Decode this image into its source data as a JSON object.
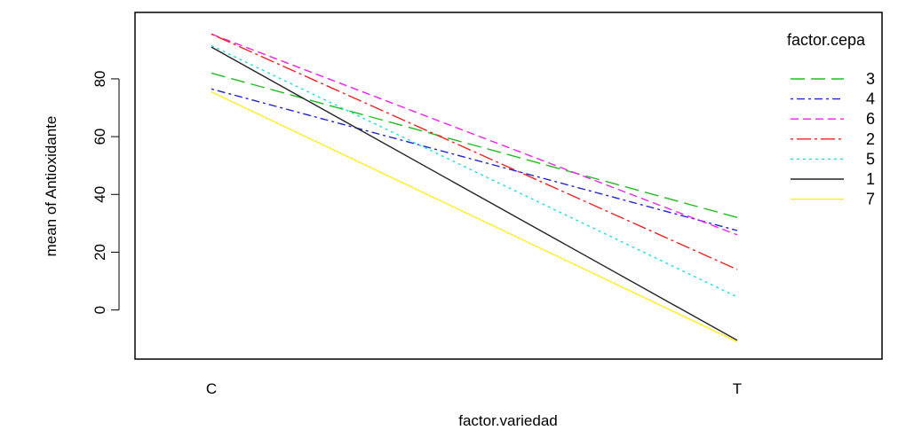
{
  "chart_data": {
    "type": "line",
    "title": "",
    "xlabel": "factor.variedad",
    "ylabel": "mean of  Antioxidante",
    "categories": [
      "C",
      "T"
    ],
    "ylim": [
      -17,
      103
    ],
    "yticks": [
      0,
      20,
      40,
      60,
      80
    ],
    "grid": false,
    "legend": {
      "title": "factor.cepa",
      "position": "right"
    },
    "series": [
      {
        "name": "3",
        "values": [
          82,
          32
        ],
        "color": "#22bb22",
        "dash": "long-dash"
      },
      {
        "name": "4",
        "values": [
          76.5,
          27.5
        ],
        "color": "#2222cc",
        "dash": "dot-dash"
      },
      {
        "name": "6",
        "values": [
          95.5,
          26
        ],
        "color": "#ee22ee",
        "dash": "dash"
      },
      {
        "name": "2",
        "values": [
          95.5,
          14
        ],
        "color": "#ee2222",
        "dash": "long-dot-dash"
      },
      {
        "name": "5",
        "values": [
          91.5,
          4.5
        ],
        "color": "#22dddd",
        "dash": "dot"
      },
      {
        "name": "1",
        "values": [
          91,
          -10.5
        ],
        "color": "#222222",
        "dash": "solid"
      },
      {
        "name": "7",
        "values": [
          75.5,
          -11
        ],
        "color": "#ffee22",
        "dash": "solid"
      }
    ]
  }
}
